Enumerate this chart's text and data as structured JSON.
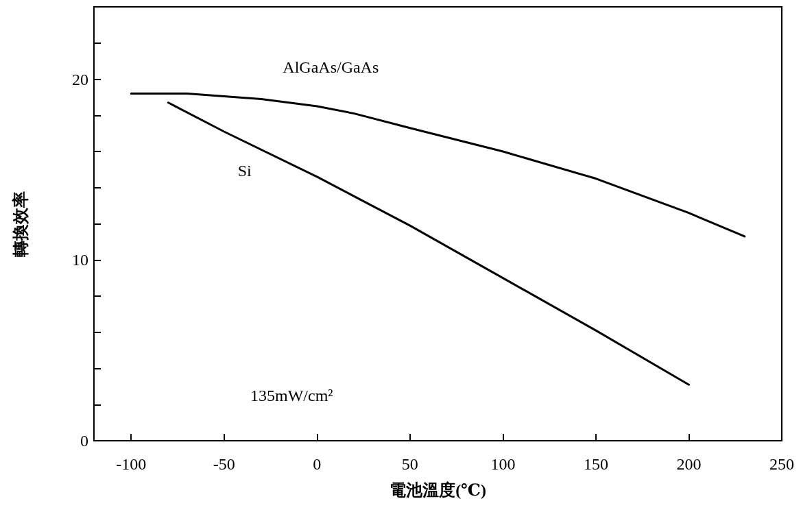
{
  "chart_data": {
    "type": "line",
    "xlabel": "電池溫度(℃)",
    "ylabel": "轉換效率",
    "xlim": [
      -120,
      250
    ],
    "xticks": [
      -100,
      -50,
      0,
      50,
      100,
      150,
      200,
      250
    ],
    "ylim": [
      0,
      24
    ],
    "yticks": [
      0,
      {
        "value": 2,
        "label": null
      },
      {
        "value": 4,
        "label": null
      },
      {
        "value": 6,
        "label": null
      },
      {
        "value": 8,
        "label": null
      },
      10,
      {
        "value": 12,
        "label": null
      },
      {
        "value": 14,
        "label": null
      },
      {
        "value": 16,
        "label": null
      },
      {
        "value": 18,
        "label": null
      },
      20,
      {
        "value": 22,
        "label": null
      },
      {
        "value": 24,
        "label": null
      }
    ],
    "marker": "none",
    "line_style": "solid",
    "legend": false,
    "series": [
      {
        "name": "AlGaAs/GaAs",
        "color": "#000000",
        "x": [
          -100,
          -70,
          -30,
          0,
          20,
          50,
          100,
          150,
          200,
          230
        ],
        "values": [
          19.2,
          19.2,
          18.9,
          18.5,
          18.1,
          17.3,
          16.0,
          14.5,
          12.6,
          11.3
        ]
      },
      {
        "name": "Si",
        "color": "#000000",
        "x": [
          -80,
          -50,
          0,
          50,
          100,
          150,
          200
        ],
        "values": [
          18.7,
          17.1,
          14.6,
          11.9,
          9.0,
          6.1,
          3.1
        ]
      }
    ],
    "annotations": [
      "135mW/cm²"
    ]
  }
}
